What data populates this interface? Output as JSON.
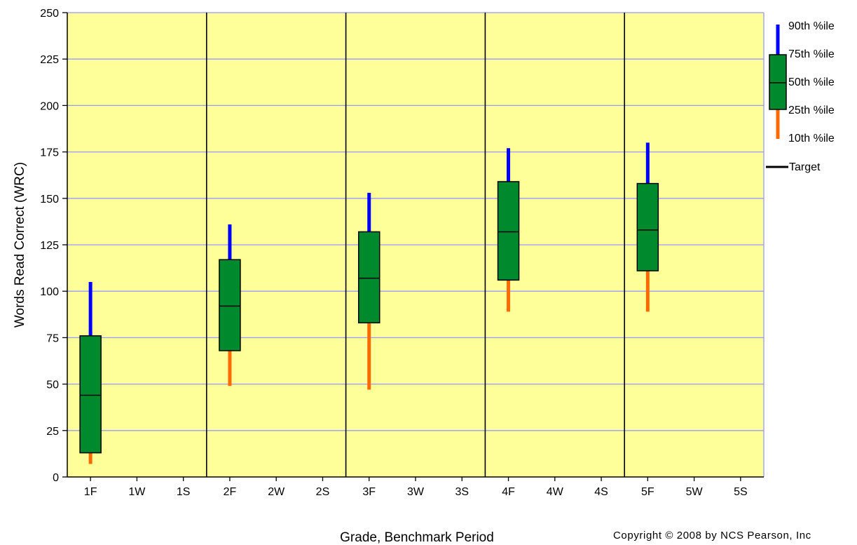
{
  "chart_data": {
    "type": "box",
    "title": "",
    "xlabel": "Grade, Benchmark Period",
    "ylabel": "Words Read Correct (WRC)",
    "ylim": [
      0,
      250
    ],
    "yticks": [
      0,
      25,
      50,
      75,
      100,
      125,
      150,
      175,
      200,
      225,
      250
    ],
    "categories": [
      "1F",
      "1W",
      "1S",
      "2F",
      "2W",
      "2S",
      "3F",
      "3W",
      "3S",
      "4F",
      "4W",
      "4S",
      "5F",
      "5W",
      "5S"
    ],
    "grade_separators_after": [
      "1S",
      "2S",
      "3S",
      "4S"
    ],
    "grid": true,
    "legend_position": "right",
    "legend": {
      "p90": "90th %ile",
      "p75": "75th %ile",
      "p50": "50th %ile",
      "p25": "25th %ile",
      "p10": "10th %ile",
      "target": "Target"
    },
    "boxes": [
      {
        "category": "1F",
        "p10": 7,
        "p25": 13,
        "p50": 44,
        "p75": 76,
        "p90": 105
      },
      {
        "category": "2F",
        "p10": 49,
        "p25": 68,
        "p50": 92,
        "p75": 117,
        "p90": 136
      },
      {
        "category": "3F",
        "p10": 47,
        "p25": 83,
        "p50": 107,
        "p75": 132,
        "p90": 153
      },
      {
        "category": "4F",
        "p10": 89,
        "p25": 106,
        "p50": 132,
        "p75": 159,
        "p90": 177
      },
      {
        "category": "5F",
        "p10": 89,
        "p25": 111,
        "p50": 133,
        "p75": 158,
        "p90": 180
      }
    ],
    "colors": {
      "plot_background": "#ffff99",
      "gridline": "#9999ff",
      "box_fill": "#008a2e",
      "upper_whisker": "#0000ff",
      "lower_whisker": "#ff6a00",
      "separator": "#000000"
    }
  },
  "footer": {
    "copyright": "Copyright © 2008 by NCS Pearson, Inc"
  }
}
